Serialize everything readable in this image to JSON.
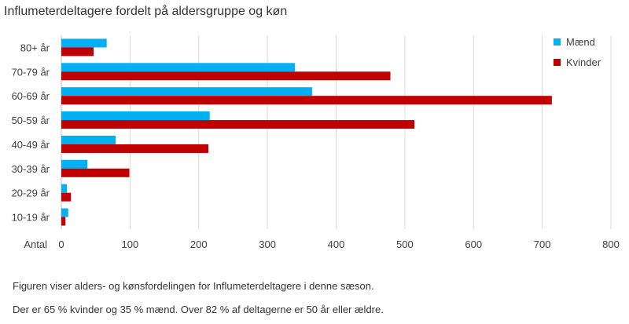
{
  "chart_data": {
    "type": "bar",
    "orientation": "horizontal",
    "title": "Influmeterdeltagere fordelt på aldersgruppe og køn",
    "xlabel": "Antal",
    "ylabel": "",
    "categories": [
      "80+ år",
      "70-79 år",
      "60-69 år",
      "50-59 år",
      "40-49 år",
      "30-39 år",
      "20-29 år",
      "10-19 år"
    ],
    "series": [
      {
        "name": "Mænd",
        "color": "#00b0f0",
        "values": [
          66,
          340,
          365,
          216,
          79,
          38,
          8,
          10
        ]
      },
      {
        "name": "Kvinder",
        "color": "#c00000",
        "values": [
          47,
          479,
          714,
          514,
          214,
          99,
          14,
          6
        ]
      }
    ],
    "xlim": [
      0,
      800
    ],
    "xticks": [
      0,
      100,
      200,
      300,
      400,
      500,
      600,
      700,
      800
    ],
    "grid": true,
    "legend_position": "top-right"
  },
  "captions": {
    "line1": "Figuren viser alders- og kønsfordelingen for Influmeterdeltagere  i denne sæson.",
    "line2": "Der er 65 % kvinder og 35 % mænd. Over 82 % af deltagerne er 50 år eller ældre."
  }
}
